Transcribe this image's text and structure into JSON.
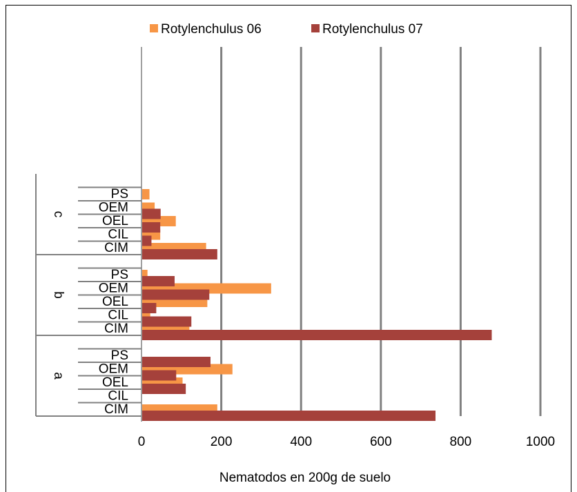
{
  "chart_data": {
    "type": "bar",
    "orientation": "horizontal",
    "xlabel": "Nematodos en 200g de suelo",
    "ylabel": "",
    "xlim": [
      0,
      1000
    ],
    "xticks": [
      "0",
      "200",
      "400",
      "600",
      "800",
      "1000"
    ],
    "grid": true,
    "legend_position": "top",
    "groups": [
      {
        "name": "a",
        "categories": [
          "CIM",
          "CIL",
          "OEL",
          "OEM",
          "PS"
        ]
      },
      {
        "name": "b",
        "categories": [
          "CIM",
          "CIL",
          "OEL",
          "OEM",
          "PS"
        ]
      },
      {
        "name": "c",
        "categories": [
          "CIM",
          "CIL",
          "OEL",
          "OEM",
          "PS"
        ]
      }
    ],
    "series": [
      {
        "name": "Rotylenchulus 06",
        "color": "#f79646",
        "values": {
          "a": [
            190,
            0,
            103,
            228,
            0
          ],
          "b": [
            120,
            22,
            165,
            325,
            15
          ],
          "c": [
            162,
            47,
            86,
            33,
            20
          ]
        }
      },
      {
        "name": "Rotylenchulus 07",
        "color": "#a5413b",
        "values": {
          "a": [
            737,
            0,
            111,
            87,
            173
          ],
          "b": [
            878,
            125,
            37,
            170,
            83
          ],
          "c": [
            190,
            25,
            47,
            48,
            0
          ]
        }
      }
    ]
  }
}
